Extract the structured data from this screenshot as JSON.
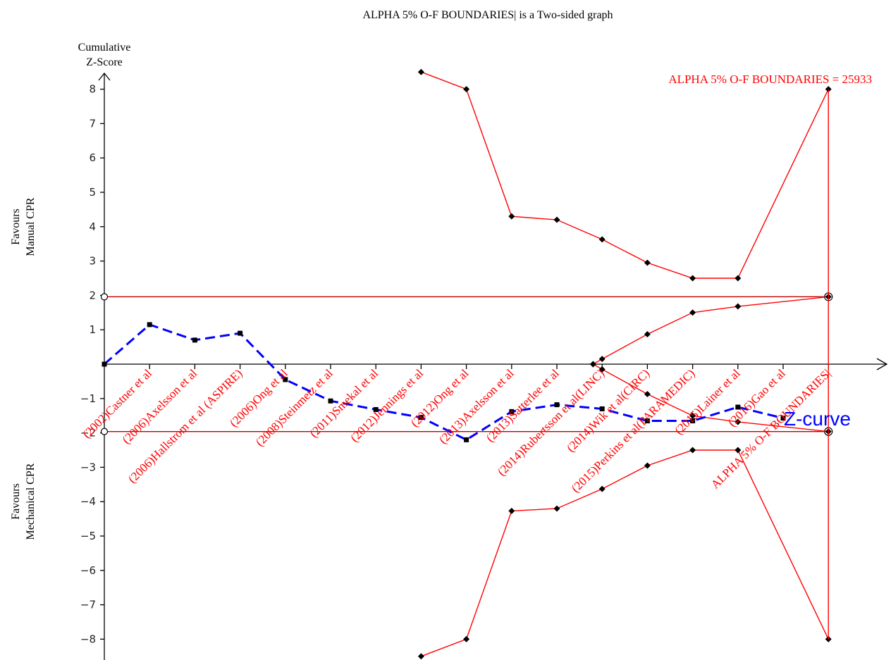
{
  "chart_data": {
    "type": "line",
    "title": "ALPHA  5% O-F BOUNDARIES| is a Two-sided graph",
    "ylabel_line1": "Cumulative",
    "ylabel_line2": "Z-Score",
    "upper_side_label_line1": "Favours",
    "upper_side_label_line2": "Manual CPR",
    "lower_side_label_line1": "Favours",
    "lower_side_label_line2": "Mechanical CPR",
    "boundary_label": "ALPHA  5% O-F BOUNDARIES = 25933",
    "zcurve_label": "Z-curve",
    "ylim": [
      -8.5,
      8.5
    ],
    "yticks": [
      8,
      7,
      6,
      5,
      4,
      3,
      2,
      1,
      -1,
      -2,
      -3,
      -4,
      -5,
      -6,
      -7,
      -8
    ],
    "ytick_labels": [
      "8",
      "7",
      "6",
      "5",
      "4",
      "3",
      "2",
      "1",
      "−1",
      "−2",
      "−3",
      "−4",
      "−5",
      "−6",
      "−7",
      "−8"
    ],
    "xlim": [
      0,
      16
    ],
    "categories": [
      "(2002)Castner et al",
      "(2006)Axelsson et al",
      "(2006)Hallstrom et al (ASPIRE)",
      "(2006)Ong et al",
      "(2008)Steinmetz et al",
      "(2011)Smekal et al",
      "(2012)Jennings et al",
      "(2012)Ong et al",
      "(2013)Axelsson et al",
      "(2013)Satterlee et al",
      "(2014)Rubertsson et al(LINC)",
      "(2014)Wik et al(CIRC)",
      "(2015)Perkins et al(PARAMEDIC)",
      "(2015)Lainer et al",
      "(2016)Gao et al",
      "ALPHA  5% O-F BOUNDARIES|"
    ],
    "conventional_boundary": 1.96,
    "colors": {
      "boundary": "#ff0000",
      "conventional": "#c00000",
      "zcurve": "#0000ff",
      "axis": "#000000"
    },
    "series": [
      {
        "name": "Z-curve",
        "x": [
          0,
          1,
          2,
          3,
          4,
          5,
          6,
          7,
          8,
          9,
          10,
          11,
          12,
          13,
          14,
          15
        ],
        "y": [
          0,
          1.15,
          0.7,
          0.9,
          -0.45,
          -1.07,
          -1.32,
          -1.55,
          -2.2,
          -1.38,
          -1.18,
          -1.3,
          -1.65,
          -1.65,
          -1.25,
          -1.57
        ]
      },
      {
        "name": "",
        "x": [
          7,
          8,
          9,
          10,
          11,
          12,
          13,
          14,
          16
        ],
        "y": [
          8.5,
          8.0,
          4.3,
          4.2,
          3.63,
          2.95,
          2.5,
          2.5,
          8.0
        ]
      },
      {
        "name": "",
        "x": [
          7,
          8,
          9,
          10,
          11,
          12,
          13,
          14,
          16
        ],
        "y": [
          -8.5,
          -8.0,
          -4.27,
          -4.2,
          -3.63,
          -2.95,
          -2.5,
          -2.5,
          -8.0
        ]
      },
      {
        "name": "",
        "x": [
          10.8,
          11,
          12,
          13,
          14,
          16
        ],
        "y": [
          0,
          0.15,
          0.87,
          1.5,
          1.68,
          1.96
        ]
      },
      {
        "name": "",
        "x": [
          10.8,
          11,
          12,
          13,
          14,
          16
        ],
        "y": [
          0,
          -0.15,
          -0.87,
          -1.5,
          -1.68,
          -1.96
        ]
      }
    ]
  }
}
